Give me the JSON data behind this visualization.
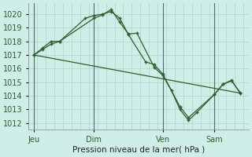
{
  "xlabel": "Pression niveau de la mer( hPa )",
  "bg_color": "#d0eee8",
  "grid_color": "#a8d8cc",
  "line_color": "#2d5e2d",
  "vline_color": "#6688aa",
  "ylim": [
    1011.5,
    1020.8
  ],
  "yticks": [
    1012,
    1013,
    1014,
    1015,
    1016,
    1017,
    1018,
    1019,
    1020
  ],
  "day_labels": [
    "Jeu",
    "Dim",
    "Ven",
    "Sam"
  ],
  "day_positions": [
    0.0,
    3.5,
    7.5,
    10.5
  ],
  "day_vlines": [
    0.0,
    3.5,
    7.5,
    10.5
  ],
  "series1_x": [
    0,
    0.5,
    1.0,
    1.5,
    3.5,
    4.0,
    4.5,
    5.0,
    5.5,
    6.0,
    7.0,
    7.5,
    8.0,
    8.5,
    9.0,
    9.5,
    10.5,
    11.0,
    11.5,
    12.0
  ],
  "series1_y": [
    1017.0,
    1017.4,
    1017.8,
    1018.0,
    1019.7,
    1019.95,
    1020.35,
    1019.4,
    1018.55,
    1018.6,
    1016.1,
    1015.5,
    1014.4,
    1013.0,
    1012.2,
    1012.8,
    1014.1,
    1014.85,
    1015.15,
    1014.2
  ],
  "series2_x": [
    0,
    0.5,
    1.0,
    1.5,
    3.0,
    3.5,
    4.0,
    4.5,
    5.0,
    5.5,
    6.5,
    7.0,
    7.5,
    8.5,
    9.0,
    10.5,
    11.0,
    11.5,
    12.0
  ],
  "series2_y": [
    1017.0,
    1017.5,
    1018.0,
    1018.0,
    1019.7,
    1019.9,
    1020.0,
    1020.2,
    1019.7,
    1018.5,
    1016.5,
    1016.3,
    1015.6,
    1013.2,
    1012.4,
    1014.1,
    1014.85,
    1015.1,
    1014.25
  ],
  "series3_x": [
    0,
    12.0
  ],
  "series3_y": [
    1017.0,
    1014.2
  ],
  "xlim": [
    -0.3,
    12.5
  ],
  "figsize": [
    3.2,
    2.0
  ],
  "dpi": 100
}
